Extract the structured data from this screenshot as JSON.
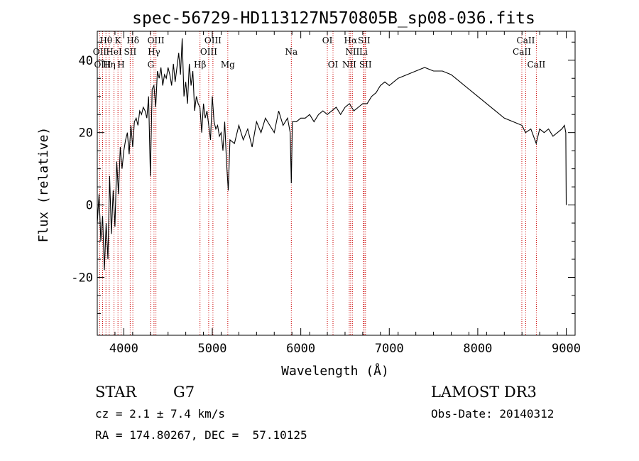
{
  "chart_data": {
    "type": "line",
    "title": "spec-56729-HD113127N570805B_sp08-036.fits",
    "xlabel": "Wavelength (Å)",
    "ylabel": "Flux (relative)",
    "xlim": [
      3700,
      9100
    ],
    "ylim": [
      -36,
      48
    ],
    "xticks": [
      4000,
      5000,
      6000,
      7000,
      8000,
      9000
    ],
    "yticks": [
      -20,
      0,
      20,
      40
    ],
    "line_color": "#000000",
    "marker_color": "#cc0000",
    "lines": [
      {
        "label": "Hθ",
        "wave": 3798,
        "row": 0
      },
      {
        "label": "OII",
        "wave": 3727,
        "row": 1
      },
      {
        "label": "OIII",
        "wave": 3760,
        "row": 2
      },
      {
        "label": "K",
        "wave": 3934,
        "row": 0
      },
      {
        "label": "HeI",
        "wave": 3889,
        "row": 1
      },
      {
        "label": "Hη",
        "wave": 3835,
        "row": 2
      },
      {
        "label": "H",
        "wave": 3969,
        "row": 2
      },
      {
        "label": "Hδ",
        "wave": 4102,
        "row": 0
      },
      {
        "label": "SII",
        "wave": 4072,
        "row": 1
      },
      {
        "label": "OIII",
        "wave": 4363,
        "row": 0
      },
      {
        "label": "Hγ",
        "wave": 4341,
        "row": 1
      },
      {
        "label": "G",
        "wave": 4305,
        "row": 2
      },
      {
        "label": "OIII",
        "wave": 5007,
        "row": 0
      },
      {
        "label": "OIII",
        "wave": 4959,
        "row": 1
      },
      {
        "label": "Hβ",
        "wave": 4861,
        "row": 2
      },
      {
        "label": "Mg",
        "wave": 5175,
        "row": 2
      },
      {
        "label": "Na",
        "wave": 5893,
        "row": 1
      },
      {
        "label": "OI",
        "wave": 6300,
        "row": 0
      },
      {
        "label": "OI",
        "wave": 6364,
        "row": 2
      },
      {
        "label": "Hα",
        "wave": 6563,
        "row": 0
      },
      {
        "label": "SII",
        "wave": 6716,
        "row": 0
      },
      {
        "label": "NII",
        "wave": 6583,
        "row": 1
      },
      {
        "label": "Li",
        "wave": 6708,
        "row": 1
      },
      {
        "label": "NII",
        "wave": 6548,
        "row": 2
      },
      {
        "label": "SII",
        "wave": 6731,
        "row": 2
      },
      {
        "label": "CaII",
        "wave": 8542,
        "row": 0
      },
      {
        "label": "CaII",
        "wave": 8498,
        "row": 1
      },
      {
        "label": "CaII",
        "wave": 8662,
        "row": 2
      }
    ],
    "series": [
      {
        "x": [
          3700,
          3720,
          3740,
          3760,
          3780,
          3800,
          3820,
          3840,
          3860,
          3880,
          3900,
          3920,
          3940,
          3960,
          3980,
          4000,
          4020,
          4040,
          4060,
          4080,
          4100,
          4120,
          4140,
          4160,
          4180,
          4200,
          4220,
          4240,
          4260,
          4280,
          4300,
          4320,
          4340,
          4360,
          4380,
          4400,
          4420,
          4440,
          4460,
          4480,
          4500,
          4520,
          4540,
          4560,
          4580,
          4600,
          4620,
          4640,
          4660,
          4680,
          4700,
          4720,
          4740,
          4760,
          4780,
          4800,
          4820,
          4840,
          4860,
          4880,
          4900,
          4920,
          4940,
          4960,
          4980,
          5000,
          5020,
          5040,
          5060,
          5080,
          5100,
          5120,
          5140,
          5160,
          5180,
          5200,
          5250,
          5300,
          5350,
          5400,
          5450,
          5500,
          5550,
          5600,
          5650,
          5700,
          5750,
          5800,
          5850,
          5880,
          5893,
          5905,
          5950,
          6000,
          6050,
          6100,
          6150,
          6200,
          6250,
          6300,
          6350,
          6400,
          6450,
          6500,
          6550,
          6600,
          6650,
          6700,
          6750,
          6800,
          6850,
          6900,
          6950,
          7000,
          7100,
          7200,
          7300,
          7400,
          7500,
          7600,
          7700,
          7800,
          7900,
          8000,
          8100,
          8200,
          8300,
          8400,
          8500,
          8540,
          8600,
          8660,
          8700,
          8750,
          8800,
          8850,
          8900,
          8950,
          8980,
          8995,
          9000
        ],
        "y": [
          -5,
          3,
          -10,
          -3,
          -18,
          -5,
          -15,
          8,
          -8,
          4,
          -6,
          12,
          3,
          16,
          10,
          15,
          18,
          20,
          14,
          22,
          16,
          23,
          24,
          22,
          26,
          25,
          27,
          26,
          24,
          30,
          8,
          32,
          33,
          27,
          37,
          35,
          38,
          33,
          36,
          35,
          38,
          36,
          33,
          39,
          34,
          38,
          42,
          36,
          46,
          30,
          34,
          28,
          39,
          33,
          37,
          26,
          30,
          28,
          27,
          20,
          28,
          24,
          26,
          22,
          18,
          30,
          23,
          21,
          22,
          19,
          20,
          15,
          23,
          12,
          4,
          18,
          17,
          22,
          18,
          21,
          16,
          23,
          20,
          24,
          22,
          20,
          26,
          22,
          24,
          20,
          6,
          23,
          23,
          24,
          24,
          25,
          23,
          25,
          26,
          25,
          26,
          27,
          25,
          27,
          28,
          26,
          27,
          28,
          28,
          30,
          31,
          33,
          34,
          33,
          35,
          36,
          37,
          38,
          37,
          37,
          36,
          34,
          32,
          30,
          28,
          26,
          24,
          23,
          22,
          20,
          21,
          17,
          21,
          20,
          21,
          19,
          20,
          21,
          22,
          20,
          0
        ]
      }
    ]
  },
  "info": {
    "class_label": "STAR",
    "subclass": "G7",
    "survey": "LAMOST DR3",
    "cz_text": "cz = 2.1 ± 7.4 km/s",
    "obsdate_text": "Obs-Date: 20140312",
    "radec_text": "RA = 174.80267, DEC =  57.10125"
  }
}
